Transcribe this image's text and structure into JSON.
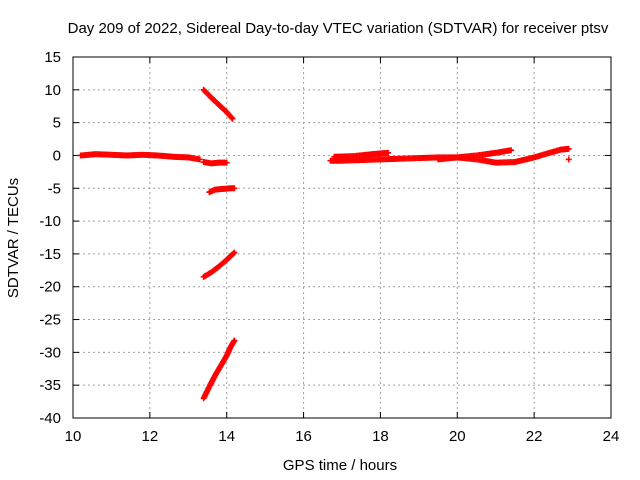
{
  "chart_data": {
    "type": "scatter",
    "title": "Day 209 of 2022, Sidereal Day-to-day VTEC variation (SDTVAR) for receiver ptsv",
    "xlabel": "GPS time / hours",
    "ylabel": "SDTVAR / TECUs",
    "xlim": [
      10,
      24
    ],
    "ylim": [
      -40,
      15
    ],
    "xticks": [
      "10",
      "12",
      "14",
      "16",
      "18",
      "20",
      "22",
      "24"
    ],
    "yticks": [
      "15",
      "10",
      "5",
      "0",
      "-5",
      "-10",
      "-15",
      "-20",
      "-25",
      "-30",
      "-35",
      "-40"
    ],
    "grid": true,
    "legend": "none",
    "marker_color": "#ff0000",
    "segments": [
      {
        "x": [
          10.2,
          10.6,
          11.0,
          11.4,
          11.8,
          12.2,
          12.6,
          13.0,
          13.3
        ],
        "y": [
          0.0,
          0.2,
          0.1,
          0.0,
          0.1,
          0.0,
          -0.2,
          -0.3,
          -0.6
        ]
      },
      {
        "x": [
          13.4,
          13.6,
          13.8,
          14.0
        ],
        "y": [
          -1.0,
          -1.2,
          -1.1,
          -1.1
        ]
      },
      {
        "x": [
          13.4,
          13.6,
          13.8,
          14.0,
          14.15
        ],
        "y": [
          10.0,
          8.8,
          7.7,
          6.6,
          5.6
        ]
      },
      {
        "x": [
          13.55,
          13.7,
          13.9,
          14.1,
          14.2
        ],
        "y": [
          -5.6,
          -5.2,
          -5.1,
          -5.0,
          -5.0
        ]
      },
      {
        "x": [
          13.4,
          13.6,
          13.8,
          14.0,
          14.2
        ],
        "y": [
          -18.5,
          -17.8,
          -16.9,
          -15.9,
          -14.8
        ]
      },
      {
        "x": [
          13.4,
          13.55,
          13.7,
          13.85,
          14.0,
          14.1,
          14.2
        ],
        "y": [
          -37.0,
          -35.2,
          -33.5,
          -32.0,
          -30.5,
          -29.2,
          -28.2
        ]
      },
      {
        "x": [
          16.7,
          17.0,
          17.5,
          18.0,
          18.5,
          19.0,
          19.5,
          20.0,
          20.5,
          21.0,
          21.5,
          22.0,
          22.4,
          22.7,
          22.9
        ],
        "y": [
          -0.8,
          -0.8,
          -0.7,
          -0.6,
          -0.5,
          -0.4,
          -0.3,
          -0.3,
          -0.6,
          -1.1,
          -1.0,
          -0.3,
          0.4,
          0.9,
          1.0
        ]
      },
      {
        "x": [
          16.8,
          17.3,
          17.8,
          18.2
        ],
        "y": [
          -0.2,
          -0.1,
          0.2,
          0.4
        ]
      },
      {
        "x": [
          19.5,
          20.0,
          20.5,
          21.0,
          21.4
        ],
        "y": [
          -0.6,
          -0.3,
          0.0,
          0.4,
          0.8
        ]
      },
      {
        "x": [
          22.9
        ],
        "y": [
          -0.6
        ]
      }
    ]
  }
}
